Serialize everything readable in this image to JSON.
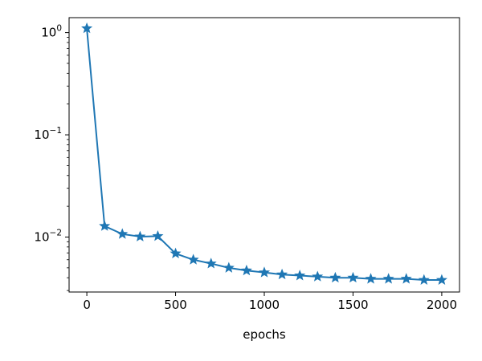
{
  "chart_data": {
    "type": "line",
    "title": "",
    "xlabel": "epochs",
    "ylabel": "",
    "xlim": [
      -100,
      2100
    ],
    "ylim": [
      0.0029,
      1.4
    ],
    "y_scale": "log",
    "grid": false,
    "legend": "none",
    "marker": "star",
    "x_ticks": [
      {
        "value": 0,
        "label": "0"
      },
      {
        "value": 500,
        "label": "500"
      },
      {
        "value": 1000,
        "label": "1000"
      },
      {
        "value": 1500,
        "label": "1500"
      },
      {
        "value": 2000,
        "label": "2000"
      }
    ],
    "y_ticks": [
      {
        "value": 1,
        "base": "10",
        "exp": "0"
      },
      {
        "value": 0.1,
        "base": "10",
        "exp": "−1"
      },
      {
        "value": 0.01,
        "base": "10",
        "exp": "−2"
      }
    ],
    "series": [
      {
        "color": "#1f77b4",
        "x": [
          0,
          100,
          200,
          300,
          400,
          500,
          600,
          700,
          800,
          900,
          1000,
          1100,
          1200,
          1300,
          1400,
          1500,
          1600,
          1700,
          1800,
          1900,
          2000
        ],
        "y": [
          1.1,
          0.0128,
          0.0107,
          0.0101,
          0.0102,
          0.0069,
          0.006,
          0.0055,
          0.005,
          0.0047,
          0.0045,
          0.0043,
          0.0042,
          0.0041,
          0.004,
          0.004,
          0.0039,
          0.0039,
          0.0039,
          0.0038,
          0.0038
        ]
      }
    ]
  }
}
